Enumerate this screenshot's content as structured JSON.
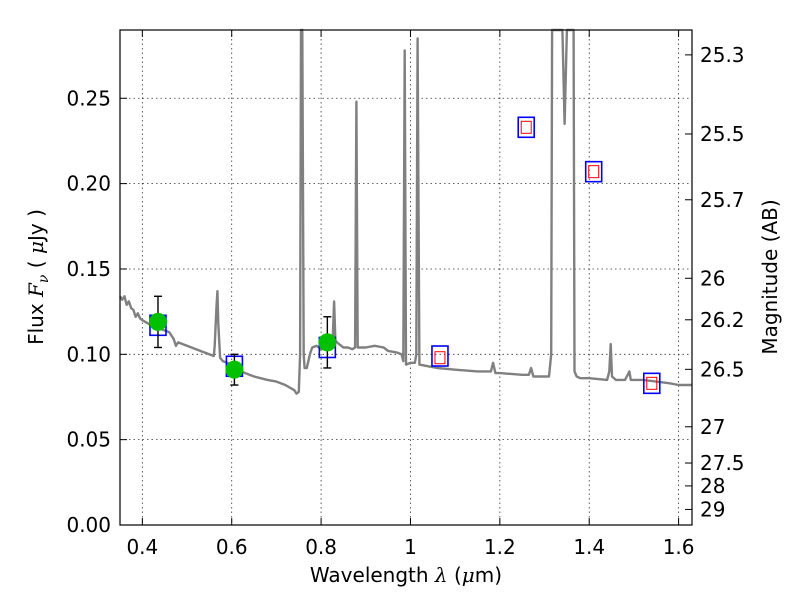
{
  "chart_data": {
    "type": "scatter",
    "xlabel_parts": [
      "Wavelength ",
      "λ",
      " (",
      "μ",
      "m)"
    ],
    "ylabel_parts": [
      "Flux ",
      "F",
      "ν",
      " ( ",
      "μ",
      "Jy )"
    ],
    "y2label": "Magnitude (AB)",
    "xlim": [
      0.35,
      1.63
    ],
    "ylim": [
      0.0,
      0.29
    ],
    "grid": true,
    "x_ticks": [
      {
        "value": 0.4,
        "label": "0.4"
      },
      {
        "value": 0.6,
        "label": "0.6"
      },
      {
        "value": 0.8,
        "label": "0.8"
      },
      {
        "value": 1.0,
        "label": "1"
      },
      {
        "value": 1.2,
        "label": "1.2"
      },
      {
        "value": 1.4,
        "label": "1.4"
      },
      {
        "value": 1.6,
        "label": "1.6"
      }
    ],
    "y_ticks": [
      {
        "value": 0.0,
        "label": "0.00"
      },
      {
        "value": 0.05,
        "label": "0.05"
      },
      {
        "value": 0.1,
        "label": "0.10"
      },
      {
        "value": 0.15,
        "label": "0.15"
      },
      {
        "value": 0.2,
        "label": "0.20"
      },
      {
        "value": 0.25,
        "label": "0.25"
      }
    ],
    "magnitude_ticks": [
      "25.3",
      "25.5",
      "25.7",
      "26",
      "26.2",
      "26.5",
      "27",
      "27.5",
      "28",
      "29"
    ],
    "sed_model": {
      "color": "#808080",
      "points": [
        [
          0.35,
          0.134
        ],
        [
          0.355,
          0.132
        ],
        [
          0.36,
          0.134
        ],
        [
          0.365,
          0.129
        ],
        [
          0.37,
          0.131
        ],
        [
          0.375,
          0.127
        ],
        [
          0.38,
          0.126
        ],
        [
          0.385,
          0.122
        ],
        [
          0.39,
          0.124
        ],
        [
          0.395,
          0.121
        ],
        [
          0.4,
          0.12
        ],
        [
          0.42,
          0.117
        ],
        [
          0.44,
          0.115
        ],
        [
          0.46,
          0.113
        ],
        [
          0.47,
          0.109
        ],
        [
          0.475,
          0.105
        ],
        [
          0.48,
          0.107
        ],
        [
          0.5,
          0.105
        ],
        [
          0.52,
          0.103
        ],
        [
          0.54,
          0.101
        ],
        [
          0.56,
          0.099
        ],
        [
          0.562,
          0.105
        ],
        [
          0.566,
          0.128
        ],
        [
          0.568,
          0.137
        ],
        [
          0.57,
          0.118
        ],
        [
          0.574,
          0.098
        ],
        [
          0.58,
          0.096
        ],
        [
          0.6,
          0.094
        ],
        [
          0.62,
          0.09
        ],
        [
          0.65,
          0.087
        ],
        [
          0.68,
          0.085
        ],
        [
          0.7,
          0.084
        ],
        [
          0.72,
          0.082
        ],
        [
          0.74,
          0.079
        ],
        [
          0.745,
          0.077
        ],
        [
          0.75,
          0.078
        ],
        [
          0.753,
          0.1
        ],
        [
          0.755,
          0.29
        ],
        [
          0.758,
          0.29
        ],
        [
          0.761,
          0.1
        ],
        [
          0.763,
          0.092
        ],
        [
          0.768,
          0.092
        ],
        [
          0.775,
          0.1
        ],
        [
          0.78,
          0.104
        ],
        [
          0.79,
          0.105
        ],
        [
          0.8,
          0.103
        ],
        [
          0.81,
          0.104
        ],
        [
          0.815,
          0.106
        ],
        [
          0.82,
          0.106
        ],
        [
          0.826,
          0.108
        ],
        [
          0.829,
          0.131
        ],
        [
          0.832,
          0.108
        ],
        [
          0.84,
          0.106
        ],
        [
          0.85,
          0.104
        ],
        [
          0.86,
          0.104
        ],
        [
          0.87,
          0.103
        ],
        [
          0.876,
          0.104
        ],
        [
          0.879,
          0.248
        ],
        [
          0.882,
          0.104
        ],
        [
          0.89,
          0.104
        ],
        [
          0.9,
          0.104
        ],
        [
          0.92,
          0.105
        ],
        [
          0.94,
          0.104
        ],
        [
          0.95,
          0.102
        ],
        [
          0.97,
          0.101
        ],
        [
          0.98,
          0.1
        ],
        [
          0.984,
          0.096
        ],
        [
          0.987,
          0.278
        ],
        [
          0.99,
          0.094
        ],
        [
          1.0,
          0.095
        ],
        [
          1.01,
          0.095
        ],
        [
          1.013,
          0.1
        ],
        [
          1.016,
          0.285
        ],
        [
          1.02,
          0.094
        ],
        [
          1.04,
          0.093
        ],
        [
          1.06,
          0.092
        ],
        [
          1.1,
          0.091
        ],
        [
          1.15,
          0.09
        ],
        [
          1.18,
          0.09
        ],
        [
          1.185,
          0.095
        ],
        [
          1.19,
          0.089
        ],
        [
          1.2,
          0.089
        ],
        [
          1.25,
          0.088
        ],
        [
          1.265,
          0.088
        ],
        [
          1.27,
          0.092
        ],
        [
          1.275,
          0.087
        ],
        [
          1.3,
          0.087
        ],
        [
          1.31,
          0.087
        ],
        [
          1.315,
          0.1
        ],
        [
          1.317,
          0.29
        ],
        [
          1.34,
          0.29
        ],
        [
          1.345,
          0.235
        ],
        [
          1.35,
          0.29
        ],
        [
          1.36,
          0.29
        ],
        [
          1.365,
          0.29
        ],
        [
          1.367,
          0.09
        ],
        [
          1.372,
          0.087
        ],
        [
          1.38,
          0.086
        ],
        [
          1.4,
          0.086
        ],
        [
          1.44,
          0.085
        ],
        [
          1.445,
          0.09
        ],
        [
          1.448,
          0.106
        ],
        [
          1.451,
          0.087
        ],
        [
          1.46,
          0.085
        ],
        [
          1.48,
          0.085
        ],
        [
          1.49,
          0.09
        ],
        [
          1.493,
          0.085
        ],
        [
          1.52,
          0.085
        ],
        [
          1.55,
          0.084
        ],
        [
          1.58,
          0.083
        ],
        [
          1.6,
          0.082
        ],
        [
          1.63,
          0.082
        ]
      ]
    },
    "observed_points": [
      {
        "x": 0.435,
        "y": 0.119,
        "err": 0.015
      },
      {
        "x": 0.606,
        "y": 0.091,
        "err": 0.009
      },
      {
        "x": 0.814,
        "y": 0.107,
        "err": 0.015
      }
    ],
    "model_photometry_blue": [
      {
        "x": 0.435,
        "y": 0.117
      },
      {
        "x": 0.606,
        "y": 0.093
      },
      {
        "x": 0.814,
        "y": 0.104
      },
      {
        "x": 1.066,
        "y": 0.099
      },
      {
        "x": 1.259,
        "y": 0.233
      },
      {
        "x": 1.41,
        "y": 0.207
      },
      {
        "x": 1.54,
        "y": 0.083
      }
    ],
    "model_photometry_red": [
      {
        "x": 1.066,
        "y": 0.098
      },
      {
        "x": 1.259,
        "y": 0.233
      },
      {
        "x": 1.41,
        "y": 0.207
      },
      {
        "x": 1.54,
        "y": 0.083
      }
    ],
    "colors": {
      "observed": "#00c000",
      "blue_box": "#0000ff",
      "red_box": "#ff0000",
      "model_line": "#808080"
    }
  }
}
